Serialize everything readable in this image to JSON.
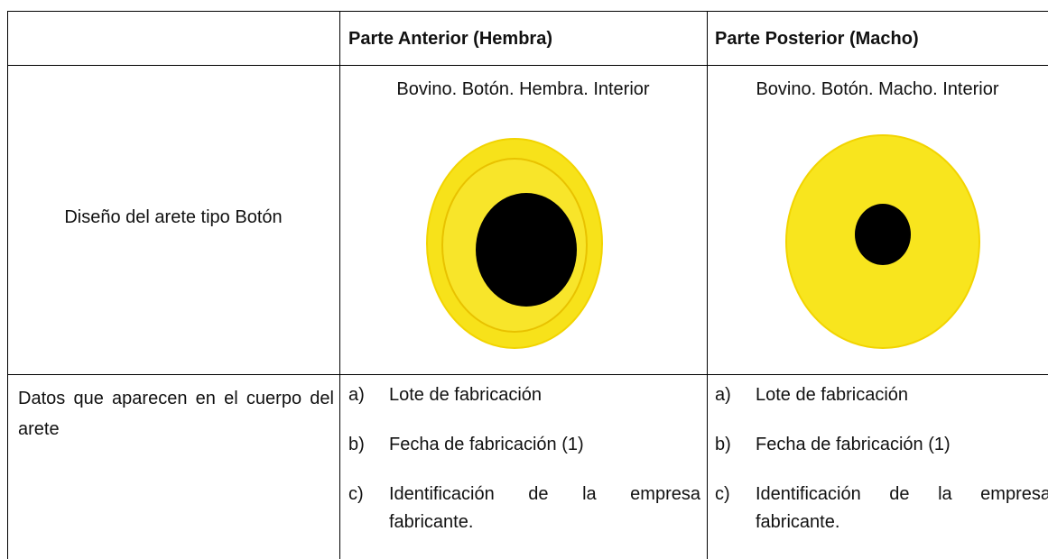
{
  "table": {
    "columns": [
      "Parte Anterior (Hembra)",
      "Parte Posterior (Macho)"
    ],
    "rows": [
      {
        "label": "Diseño del arete tipo Botón",
        "cells": [
          "Bovino. Botón. Hembra. Interior",
          "Bovino. Botón. Macho. Interior"
        ]
      },
      {
        "label": "Datos que aparecen en el cuerpo del arete",
        "cells": [
          [
            {
              "marker": "a)",
              "text": "Lote de fabricación"
            },
            {
              "marker": "b)",
              "text": "Fecha de fabricación (1)"
            },
            {
              "marker": "c)",
              "text": "Identificación de la empresa fabricante."
            }
          ],
          [
            {
              "marker": "a)",
              "text": "Lote de fabricación"
            },
            {
              "marker": "b)",
              "text": "Fecha de fabricación (1)"
            },
            {
              "marker": "c)",
              "text": "Identificación de la empresa fabricante."
            }
          ]
        ]
      }
    ]
  }
}
